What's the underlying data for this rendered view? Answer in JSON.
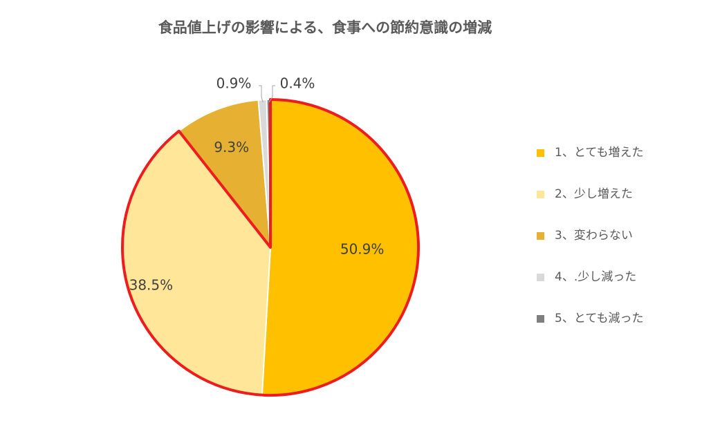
{
  "chart_data": {
    "type": "pie",
    "title": "食品値上げの影響による、食事への節約意識の増減",
    "slices": [
      {
        "label": "1、とても増えた",
        "value": 50.9,
        "display": "50.9%",
        "color": "#ffc000"
      },
      {
        "label": "2、少し増えた",
        "value": 38.5,
        "display": "38.5%",
        "color": "#ffe699"
      },
      {
        "label": "3、変わらない",
        "value": 9.3,
        "display": "9.3%",
        "color": "#e6b133"
      },
      {
        "label": "4、.少し減った",
        "value": 0.9,
        "display": "0.9%",
        "color": "#d9d9d9"
      },
      {
        "label": "5、とても減った",
        "value": 0.4,
        "display": "0.4%",
        "color": "#7f7f7f"
      }
    ],
    "highlighted_slices": [
      "1、とても増えた",
      "2、少し増えた"
    ],
    "highlight_color": "#ee1c1c",
    "legend_position": "right"
  }
}
